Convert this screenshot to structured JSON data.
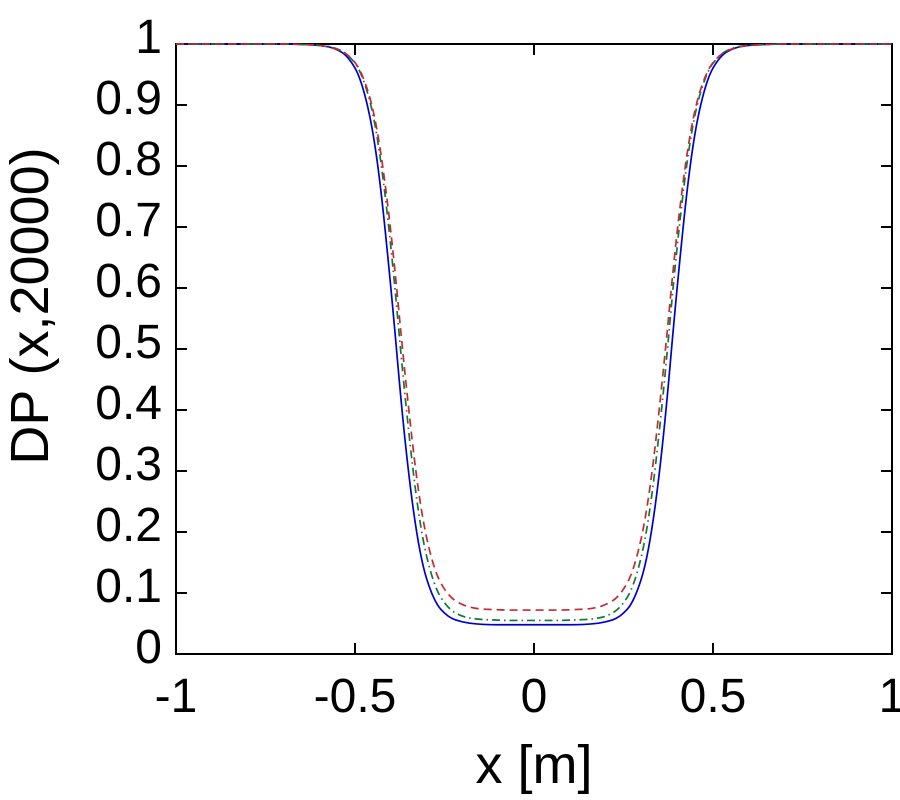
{
  "figure": {
    "background": "#ffffff",
    "axis_color": "#000000"
  },
  "chart_data": {
    "type": "line",
    "title": "",
    "xlabel": "x [m]",
    "ylabel": "DP (x,20000)",
    "xlim": [
      -1,
      1
    ],
    "ylim": [
      0,
      1
    ],
    "grid": false,
    "legend": "none",
    "xticks": [
      -1,
      -0.5,
      0,
      0.5,
      1
    ],
    "xtick_labels": [
      "-1",
      "-0.5",
      "0",
      "0.5",
      "1"
    ],
    "yticks": [
      0,
      0.1,
      0.2,
      0.3,
      0.4,
      0.5,
      0.6,
      0.7,
      0.8,
      0.9,
      1
    ],
    "ytick_labels": [
      "0",
      "0.1",
      "0.2",
      "0.3",
      "0.4",
      "0.5",
      "0.6",
      "0.7",
      "0.8",
      "0.9",
      "1"
    ],
    "x": [
      -1,
      -0.96,
      -0.92,
      -0.88,
      -0.84,
      -0.8,
      -0.76,
      -0.72,
      -0.68,
      -0.64,
      -0.6,
      -0.56,
      -0.52,
      -0.48,
      -0.44,
      -0.4,
      -0.36,
      -0.32,
      -0.28,
      -0.24,
      -0.2,
      -0.16,
      -0.12,
      -0.08,
      -0.04,
      0,
      0.04,
      0.08,
      0.12,
      0.16,
      0.2,
      0.24,
      0.28,
      0.32,
      0.36,
      0.4,
      0.44,
      0.48,
      0.52,
      0.56,
      0.6,
      0.64,
      0.68,
      0.72,
      0.76,
      0.8,
      0.84,
      0.88,
      0.92,
      0.96,
      1
    ],
    "series": [
      {
        "name": "blue-solid-curve",
        "color": "#0000CC",
        "line_style": "solid",
        "min_value": 0.048,
        "values": [
          1,
          1,
          1,
          1,
          1,
          1,
          1,
          1,
          1,
          0.999,
          0.998,
          0.994,
          0.981,
          0.94,
          0.83,
          0.607,
          0.338,
          0.161,
          0.086,
          0.06,
          0.052,
          0.049,
          0.048,
          0.048,
          0.048,
          0.048,
          0.048,
          0.048,
          0.048,
          0.049,
          0.052,
          0.06,
          0.086,
          0.161,
          0.338,
          0.607,
          0.83,
          0.94,
          0.981,
          0.994,
          0.998,
          0.999,
          1,
          1,
          1,
          1,
          1,
          1,
          1,
          1,
          1
        ]
      },
      {
        "name": "green-dashdot-curve",
        "color": "#0E7A35",
        "line_style": "dashdot",
        "min_value": 0.055,
        "values": [
          1,
          1,
          1,
          1,
          1,
          1,
          1,
          1,
          1,
          0.999,
          0.998,
          0.995,
          0.984,
          0.953,
          0.866,
          0.677,
          0.415,
          0.21,
          0.111,
          0.074,
          0.061,
          0.057,
          0.056,
          0.055,
          0.055,
          0.055,
          0.055,
          0.055,
          0.056,
          0.057,
          0.061,
          0.074,
          0.111,
          0.21,
          0.415,
          0.677,
          0.866,
          0.953,
          0.984,
          0.995,
          0.998,
          0.999,
          1,
          1,
          1,
          1,
          1,
          1,
          1,
          1,
          1
        ]
      },
      {
        "name": "red-dashed-curve",
        "color": "#C42B30",
        "line_style": "dashed",
        "min_value": 0.072,
        "values": [
          1,
          1,
          1,
          1,
          1,
          1,
          1,
          1,
          1,
          0.999,
          0.998,
          0.994,
          0.984,
          0.955,
          0.875,
          0.702,
          0.453,
          0.245,
          0.137,
          0.095,
          0.08,
          0.074,
          0.073,
          0.072,
          0.072,
          0.072,
          0.072,
          0.072,
          0.073,
          0.074,
          0.08,
          0.095,
          0.137,
          0.245,
          0.453,
          0.702,
          0.875,
          0.955,
          0.984,
          0.994,
          0.998,
          0.999,
          1,
          1,
          1,
          1,
          1,
          1,
          1,
          1,
          1
        ]
      }
    ]
  }
}
